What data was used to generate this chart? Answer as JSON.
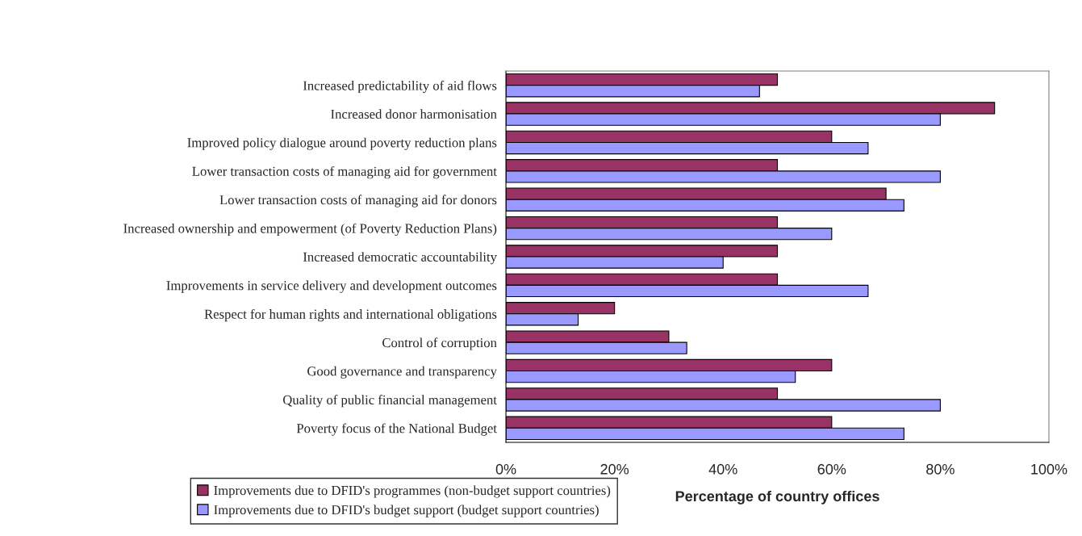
{
  "chart_data": {
    "type": "bar",
    "orientation": "horizontal",
    "xlabel": "Percentage of country offices",
    "categories": [
      "Increased predictability of aid flows",
      "Increased donor harmonisation",
      "Improved policy dialogue around poverty reduction plans",
      "Lower transaction costs of managing aid for government",
      "Lower transaction costs of managing aid for donors",
      "Increased ownership and empowerment (of Poverty Reduction Plans)",
      "Increased democratic accountability",
      "Improvements in service delivery and development outcomes",
      "Respect for human rights and international obligations",
      "Control of corruption",
      "Good governance and transparency",
      "Quality of public financial management",
      "Poverty focus of the National Budget"
    ],
    "series": [
      {
        "name": "Improvements due to DFID's programmes (non-budget support countries)",
        "color": "#993366",
        "values": [
          50,
          90,
          60,
          50,
          70,
          50,
          50,
          50,
          20,
          30,
          60,
          50,
          60
        ]
      },
      {
        "name": "Improvements due to DFID's budget support (budget support countries)",
        "color": "#9999ff",
        "values": [
          46.7,
          80,
          66.7,
          80,
          73.3,
          60,
          40,
          66.7,
          13.3,
          33.3,
          53.3,
          80,
          73.3
        ]
      }
    ],
    "xlim": [
      0,
      100
    ],
    "xticks": [
      {
        "value": 0,
        "label": "0%"
      },
      {
        "value": 20,
        "label": "20%"
      },
      {
        "value": 40,
        "label": "40%"
      },
      {
        "value": 60,
        "label": "60%"
      },
      {
        "value": 80,
        "label": "80%"
      },
      {
        "value": 100,
        "label": "100%"
      }
    ],
    "legend": "bottom",
    "grid": false
  }
}
